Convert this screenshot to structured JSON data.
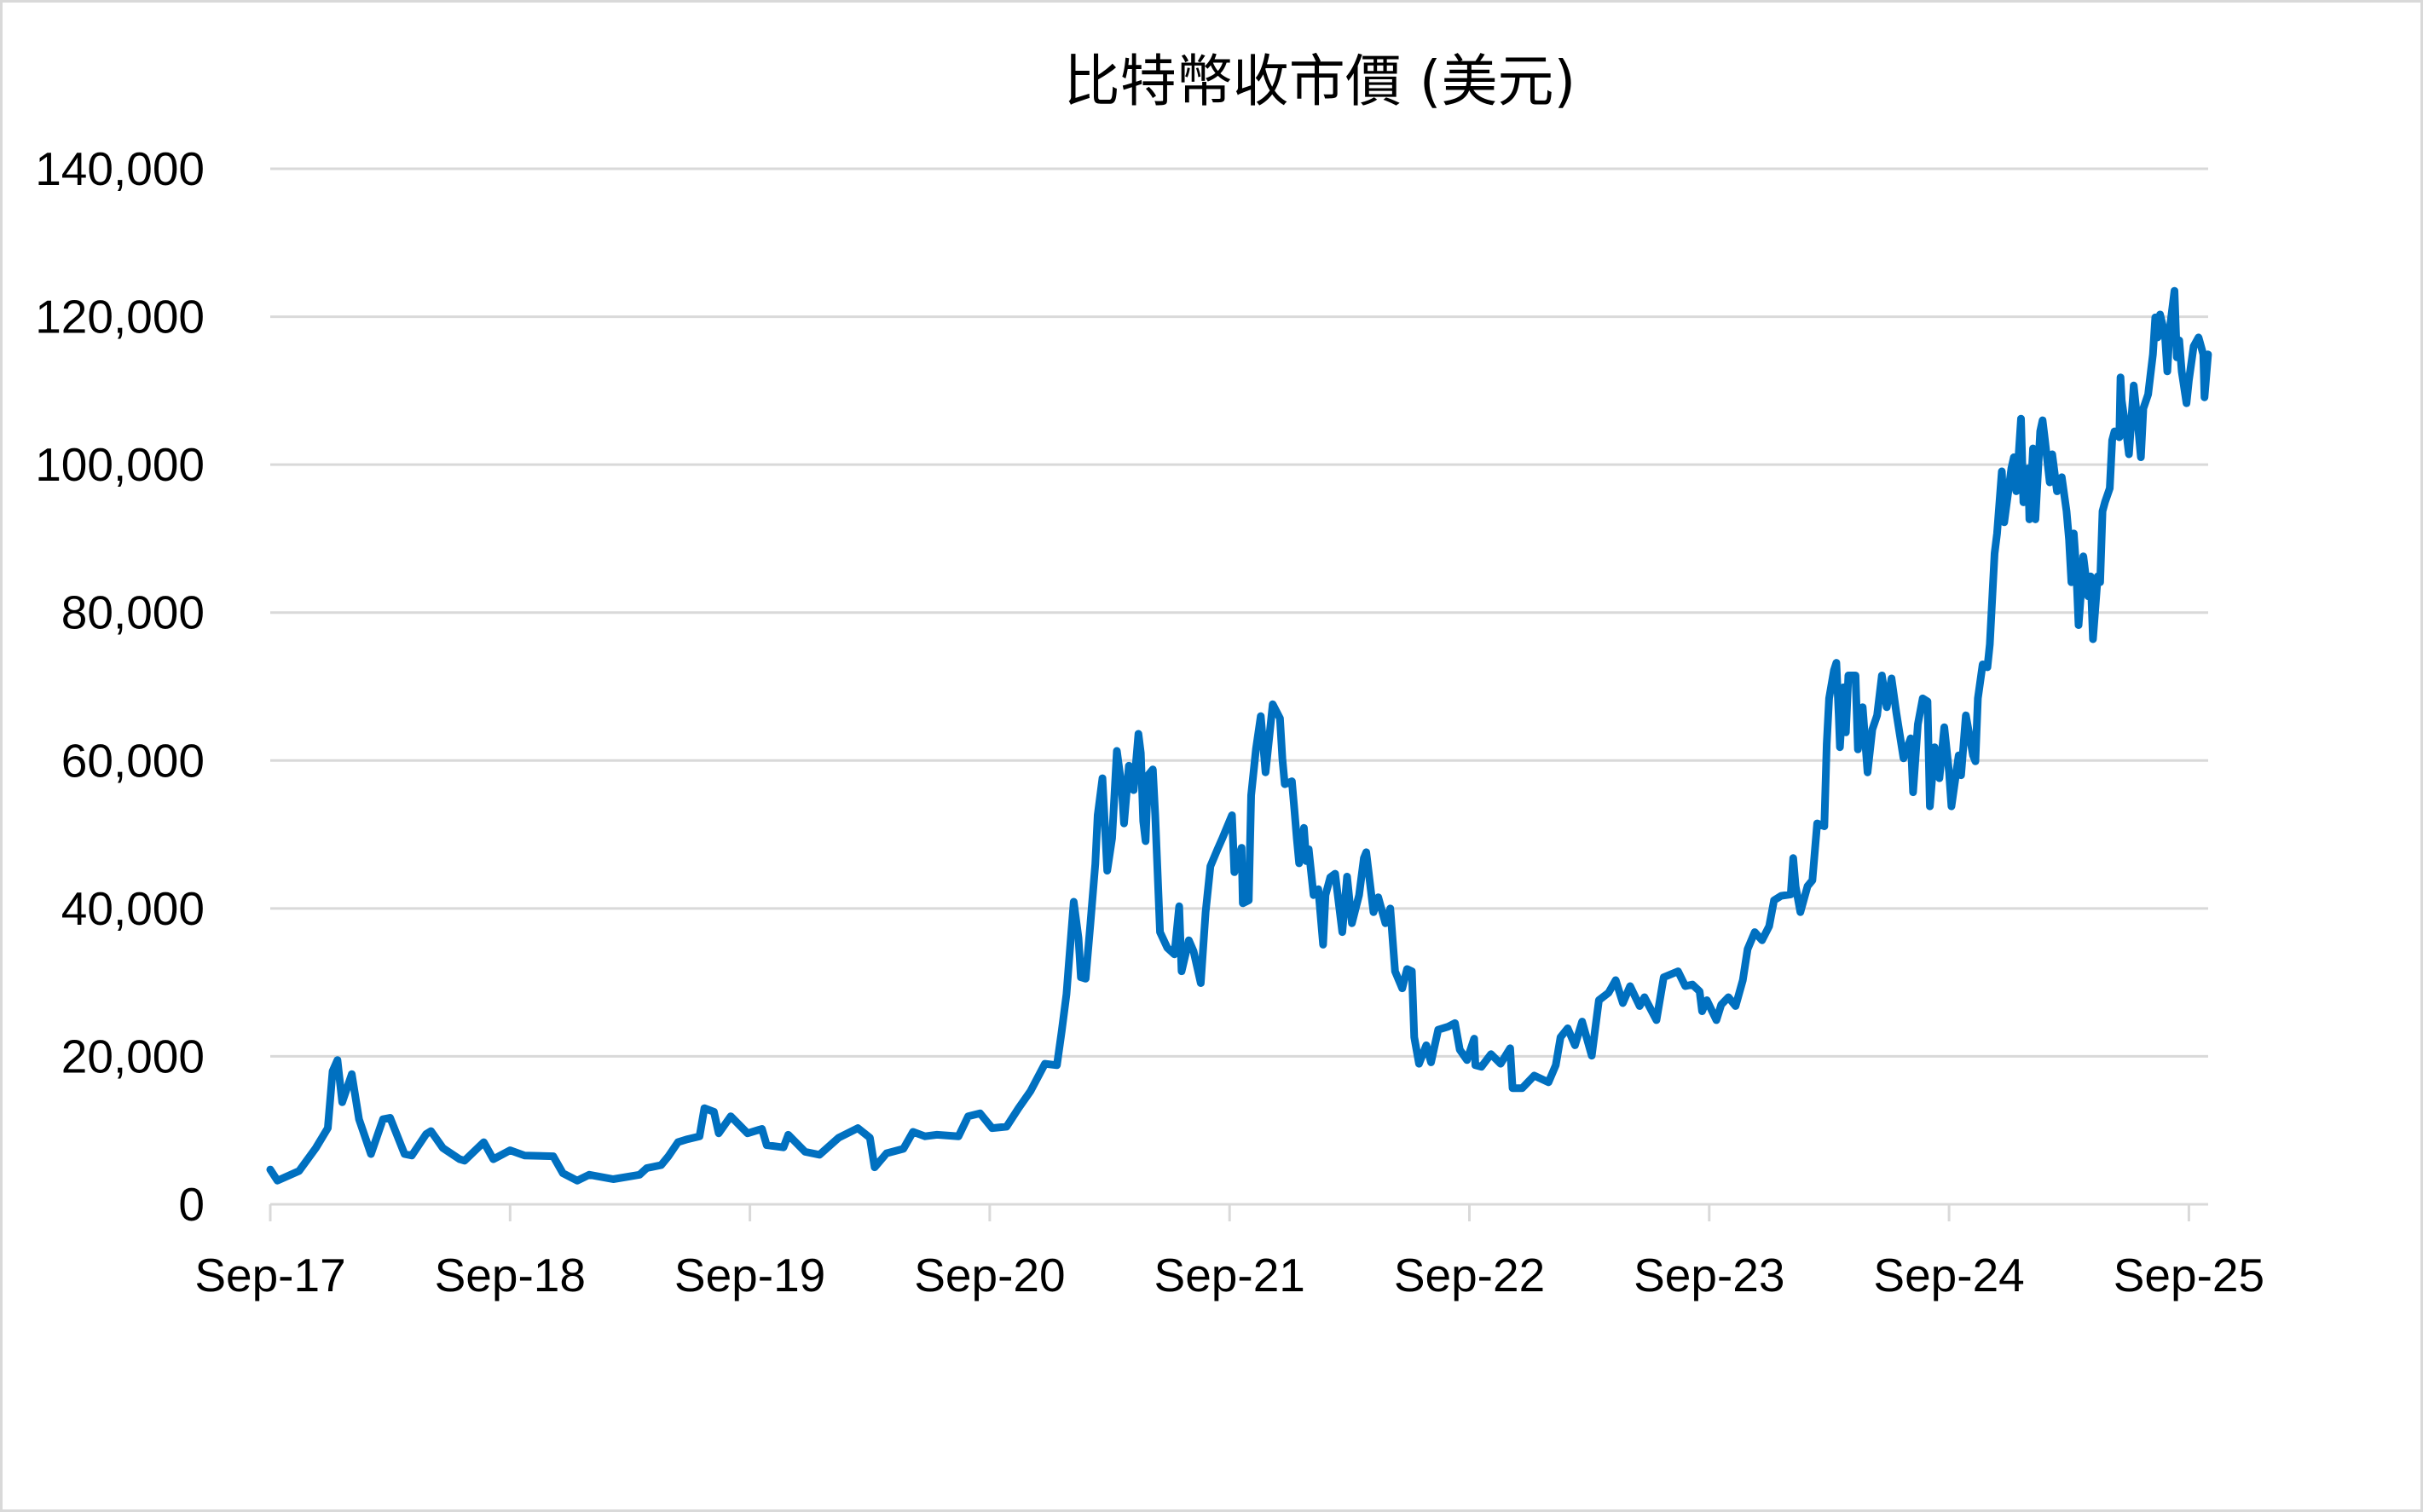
{
  "chart_title": "比特幣收市價 (美元)",
  "colors": {
    "line": "#0070C0",
    "grid": "#D9D9D9",
    "axis": "#D9D9D9",
    "text": "#000000",
    "border": "#D9D9D9"
  },
  "y_axis": {
    "ticks": [
      {
        "value": 0,
        "label": "0"
      },
      {
        "value": 20000,
        "label": "20,000"
      },
      {
        "value": 40000,
        "label": "40,000"
      },
      {
        "value": 60000,
        "label": "60,000"
      },
      {
        "value": 80000,
        "label": "80,000"
      },
      {
        "value": 100000,
        "label": "100,000"
      },
      {
        "value": 120000,
        "label": "120,000"
      },
      {
        "value": 140000,
        "label": "140,000"
      }
    ]
  },
  "x_axis": {
    "ticks": [
      {
        "t": 0,
        "label": "Sep-17"
      },
      {
        "t": 1,
        "label": "Sep-18"
      },
      {
        "t": 2,
        "label": "Sep-19"
      },
      {
        "t": 3,
        "label": "Sep-20"
      },
      {
        "t": 4,
        "label": "Sep-21"
      },
      {
        "t": 5,
        "label": "Sep-22"
      },
      {
        "t": 6,
        "label": "Sep-23"
      },
      {
        "t": 7,
        "label": "Sep-24"
      },
      {
        "t": 8,
        "label": "Sep-25"
      }
    ]
  },
  "chart_data": {
    "type": "line",
    "title": "比特幣收市價 (美元)",
    "xlabel": "",
    "ylabel": "",
    "x_unit": "years since Sep-17",
    "xlim": [
      0,
      8.08
    ],
    "ylim": [
      0,
      140000
    ],
    "grid": true,
    "legend": null,
    "categories": [
      "Sep-17",
      "Sep-18",
      "Sep-19",
      "Sep-20",
      "Sep-21",
      "Sep-22",
      "Sep-23",
      "Sep-24",
      "Sep-25"
    ],
    "series": [
      {
        "name": "比特幣收市價 (美元)",
        "x": [
          0.0,
          0.03,
          0.12,
          0.19,
          0.24,
          0.26,
          0.28,
          0.3,
          0.34,
          0.37,
          0.42,
          0.47,
          0.5,
          0.56,
          0.59,
          0.65,
          0.67,
          0.72,
          0.79,
          0.81,
          0.89,
          0.93,
          1.0,
          1.06,
          1.18,
          1.22,
          1.28,
          1.33,
          1.43,
          1.54,
          1.57,
          1.63,
          1.66,
          1.7,
          1.74,
          1.79,
          1.81,
          1.85,
          1.87,
          1.92,
          1.99,
          2.05,
          2.07,
          2.14,
          2.16,
          2.23,
          2.29,
          2.37,
          2.45,
          2.5,
          2.52,
          2.57,
          2.64,
          2.68,
          2.73,
          2.78,
          2.87,
          2.91,
          2.96,
          3.01,
          3.07,
          3.12,
          3.17,
          3.23,
          3.28,
          3.3,
          3.32,
          3.33,
          3.35,
          3.37,
          3.38,
          3.4,
          3.42,
          3.44,
          3.45,
          3.47,
          3.49,
          3.51,
          3.53,
          3.55,
          3.56,
          3.58,
          3.6,
          3.62,
          3.63,
          3.64,
          3.65,
          3.66,
          3.68,
          3.69,
          3.71,
          3.74,
          3.77,
          3.79,
          3.8,
          3.83,
          3.85,
          3.88,
          3.9,
          3.92,
          3.95,
          3.97,
          4.01,
          4.02,
          4.05,
          4.055,
          4.08,
          4.09,
          4.11,
          4.13,
          4.15,
          4.18,
          4.21,
          4.22,
          4.23,
          4.26,
          4.27,
          4.28,
          4.29,
          4.31,
          4.32,
          4.33,
          4.35,
          4.37,
          4.39,
          4.4,
          4.42,
          4.44,
          4.47,
          4.49,
          4.51,
          4.54,
          4.56,
          4.57,
          4.6,
          4.62,
          4.65,
          4.67,
          4.69,
          4.72,
          4.74,
          4.76,
          4.77,
          4.79,
          4.82,
          4.84,
          4.87,
          4.91,
          4.94,
          4.96,
          4.99,
          5.02,
          5.025,
          5.05,
          5.09,
          5.13,
          5.17,
          5.18,
          5.22,
          5.27,
          5.33,
          5.36,
          5.38,
          5.41,
          5.44,
          5.47,
          5.51,
          5.54,
          5.58,
          5.61,
          5.64,
          5.67,
          5.71,
          5.73,
          5.78,
          5.81,
          5.84,
          5.87,
          5.9,
          5.93,
          5.96,
          5.97,
          5.99,
          6.03,
          6.05,
          6.08,
          6.11,
          6.14,
          6.16,
          6.19,
          6.22,
          6.25,
          6.27,
          6.3,
          6.34,
          6.35,
          6.36,
          6.38,
          6.41,
          6.43,
          6.45,
          6.48,
          6.49,
          6.5,
          6.52,
          6.53,
          6.54,
          6.545,
          6.56,
          6.57,
          6.58,
          6.61,
          6.62,
          6.64,
          6.66,
          6.68,
          6.7,
          6.72,
          6.74,
          6.76,
          6.78,
          6.81,
          6.84,
          6.85,
          6.87,
          6.89,
          6.91,
          6.92,
          6.94,
          6.96,
          6.98,
          7.0,
          7.01,
          7.04,
          7.05,
          7.07,
          7.1,
          7.11,
          7.12,
          7.14,
          7.16,
          7.17,
          7.19,
          7.2,
          7.22,
          7.23,
          7.26,
          7.27,
          7.28,
          7.3,
          7.31,
          7.33,
          7.335,
          7.35,
          7.36,
          7.38,
          7.39,
          7.4,
          7.42,
          7.43,
          7.45,
          7.47,
          7.49,
          7.5,
          7.51,
          7.52,
          7.53,
          7.54,
          7.55,
          7.56,
          7.58,
          7.59,
          7.6,
          7.62,
          7.63,
          7.64,
          7.65,
          7.67,
          7.68,
          7.69,
          7.71,
          7.715,
          7.72,
          7.74,
          7.75,
          7.77,
          7.79,
          7.8,
          7.81,
          7.83,
          7.85,
          7.86,
          7.87,
          7.88,
          7.9,
          7.91,
          7.92,
          7.94,
          7.95,
          7.96,
          7.97,
          7.99,
          8.0,
          8.02,
          8.04,
          8.06,
          8.065,
          8.08
        ],
        "values": [
          4700,
          3200,
          4500,
          7600,
          10300,
          18000,
          19500,
          13800,
          17600,
          11500,
          6800,
          11500,
          11700,
          6800,
          6600,
          9500,
          9900,
          7600,
          6100,
          5900,
          8400,
          6100,
          7300,
          6600,
          6500,
          4200,
          3200,
          4000,
          3400,
          4000,
          4900,
          5300,
          6500,
          8400,
          8800,
          9200,
          13000,
          12500,
          9600,
          11900,
          9600,
          10200,
          8000,
          7700,
          9400,
          7100,
          6700,
          9000,
          10300,
          9000,
          5000,
          6900,
          7500,
          9800,
          9200,
          9400,
          9200,
          11900,
          12300,
          10300,
          10500,
          13000,
          15300,
          19000,
          18800,
          23400,
          28400,
          32600,
          40900,
          36000,
          30700,
          30500,
          38000,
          46000,
          52600,
          57600,
          45100,
          49500,
          61300,
          56500,
          51500,
          59300,
          56000,
          63600,
          61000,
          51800,
          49100,
          58000,
          58800,
          52600,
          36800,
          34700,
          33800,
          40300,
          31500,
          35700,
          34200,
          29900,
          39500,
          45700,
          48000,
          49500,
          52600,
          44900,
          48200,
          40700,
          41100,
          55300,
          61500,
          66000,
          58400,
          67600,
          65700,
          60300,
          56800,
          57200,
          53400,
          49500,
          46100,
          50900,
          46400,
          48000,
          41800,
          42600,
          35100,
          41800,
          44200,
          44700,
          36800,
          44300,
          38000,
          41800,
          46800,
          47600,
          39500,
          41500,
          38000,
          40000,
          31500,
          29200,
          31800,
          31500,
          22600,
          19000,
          21500,
          19200,
          23600,
          24000,
          24500,
          20900,
          19500,
          22400,
          18800,
          18600,
          20300,
          19000,
          21100,
          15700,
          15700,
          17400,
          16500,
          18800,
          22600,
          23800,
          21500,
          24700,
          20100,
          27600,
          28600,
          30300,
          27200,
          29500,
          26800,
          28000,
          24900,
          30700,
          31100,
          31500,
          29500,
          29700,
          28800,
          26100,
          27600,
          24900,
          27000,
          28000,
          26800,
          30300,
          34500,
          36800,
          35700,
          37600,
          41100,
          41700,
          41900,
          46800,
          43000,
          39500,
          43000,
          43800,
          51500,
          51100,
          62200,
          68400,
          72200,
          73200,
          66100,
          61800,
          69900,
          63800,
          71500,
          71500,
          61500,
          67200,
          58400,
          64200,
          66100,
          71500,
          67200,
          71100,
          66500,
          60300,
          63000,
          55700,
          64900,
          68400,
          68000,
          53800,
          61800,
          57600,
          64500,
          58400,
          53800,
          60700,
          58000,
          66100,
          60700,
          59900,
          68400,
          73000,
          72600,
          75700,
          88000,
          90700,
          99100,
          92200,
          99500,
          101000,
          96400,
          106200,
          94900,
          99500,
          92600,
          102200,
          92600,
          104500,
          106000,
          103300,
          97600,
          101400,
          96400,
          98300,
          93700,
          89900,
          84100,
          90700,
          86000,
          78300,
          82600,
          87600,
          82200,
          84900,
          76400,
          84900,
          84100,
          93700,
          94900,
          96800,
          103300,
          104500,
          103700,
          111800,
          108700,
          104100,
          101400,
          110700,
          104500,
          101000,
          107600,
          109500,
          114900,
          119900,
          117200,
          120300,
          117600,
          112600,
          118300,
          123500,
          114500,
          116800,
          112600,
          108300,
          111400,
          116000,
          117200,
          114900,
          109100,
          114900
        ]
      }
    ]
  }
}
